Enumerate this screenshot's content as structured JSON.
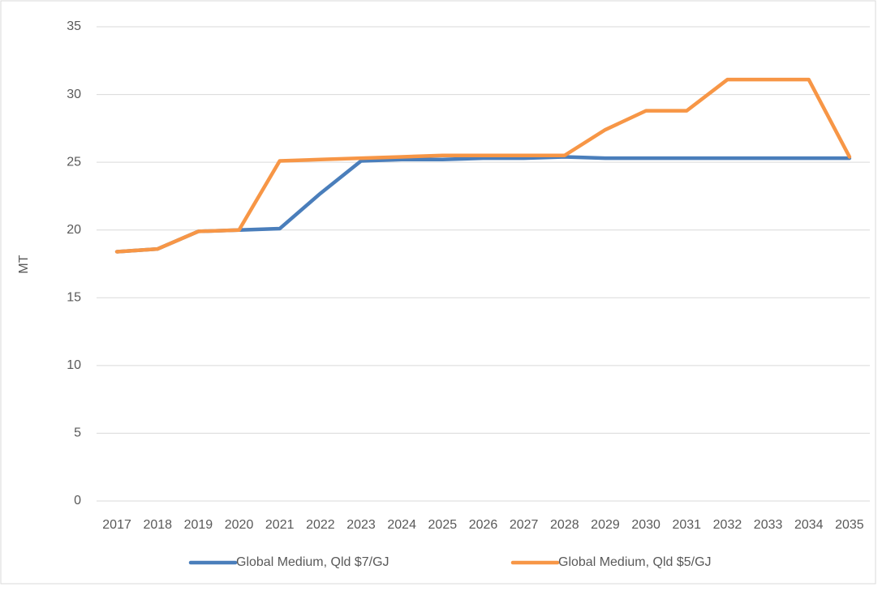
{
  "chart_data": {
    "type": "line",
    "y_label": "MT",
    "categories": [
      "2017",
      "2018",
      "2019",
      "2020",
      "2021",
      "2022",
      "2023",
      "2024",
      "2025",
      "2026",
      "2027",
      "2028",
      "2029",
      "2030",
      "2031",
      "2032",
      "2033",
      "2034",
      "2035"
    ],
    "series": [
      {
        "name": "Global Medium, Qld $7/GJ",
        "color": "#4a7ebb",
        "values": [
          18.4,
          18.6,
          19.9,
          20.0,
          20.1,
          22.7,
          25.1,
          25.2,
          25.2,
          25.3,
          25.3,
          25.4,
          25.3,
          25.3,
          25.3,
          25.3,
          25.3,
          25.3,
          25.3
        ]
      },
      {
        "name": "Global Medium, Qld $5/GJ",
        "color": "#f79646",
        "values": [
          18.4,
          18.6,
          19.9,
          20.0,
          25.1,
          25.2,
          25.3,
          25.4,
          25.5,
          25.5,
          25.5,
          25.5,
          27.4,
          28.8,
          28.8,
          31.1,
          31.1,
          31.1,
          25.4
        ]
      }
    ],
    "ylim": [
      0,
      35
    ],
    "yticks": [
      0,
      5,
      10,
      15,
      20,
      25,
      30,
      35
    ],
    "grid": true,
    "legend": "bottom"
  }
}
